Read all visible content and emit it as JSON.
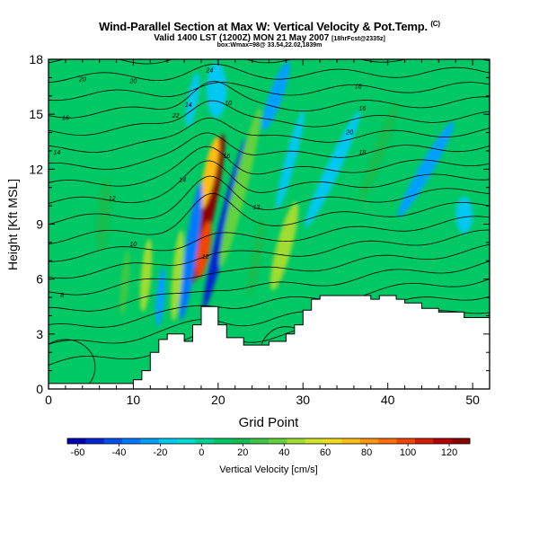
{
  "header": {
    "title_main": "Wind-Parallel Section at Max W: Vertical Velocity & Pot.Temp.",
    "title_mark": "(C)",
    "subtitle_main": "Valid 1400 LST (1200Z) MON 21 May 2007",
    "subtitle_small": "[18hrFcst@2335z]",
    "subtitle2": "box:Wmax=98@ 33.54,22.02,1839m"
  },
  "chart_data": {
    "type": "heatmap",
    "xlabel": "Grid Point",
    "ylabel": "Height [Kft MSL]",
    "xlim": [
      0,
      52
    ],
    "ylim": [
      0,
      18
    ],
    "xticks": [
      0,
      10,
      20,
      30,
      40,
      50
    ],
    "yticks": [
      0,
      3,
      6,
      9,
      12,
      15,
      18
    ],
    "colorbar": {
      "label": "Vertical Velocity [cm/s]",
      "ticks": [
        -60,
        -40,
        -20,
        0,
        20,
        40,
        60,
        80,
        100,
        120
      ],
      "range": [
        -65,
        130
      ],
      "colors": [
        "#0000b4",
        "#0028d2",
        "#0050f0",
        "#0078ff",
        "#00a0ff",
        "#00c8f0",
        "#00dcd2",
        "#00d296",
        "#00c864",
        "#14be50",
        "#3cc846",
        "#64d23c",
        "#a0dc32",
        "#d2e628",
        "#f0dc1e",
        "#ffbe14",
        "#ff960f",
        "#ff6e0a",
        "#f04605",
        "#d21e00",
        "#b40000",
        "#8c0000"
      ]
    },
    "terrain": [
      [
        0,
        0.3
      ],
      [
        10,
        0.3
      ],
      [
        10,
        0.5
      ],
      [
        11,
        0.5
      ],
      [
        11,
        1
      ],
      [
        12,
        1
      ],
      [
        12,
        2
      ],
      [
        13,
        2
      ],
      [
        13,
        2.7
      ],
      [
        14,
        2.7
      ],
      [
        14,
        3
      ],
      [
        16,
        3
      ],
      [
        16,
        2.6
      ],
      [
        17,
        2.6
      ],
      [
        17,
        3.5
      ],
      [
        18,
        3.5
      ],
      [
        18,
        4.5
      ],
      [
        20,
        4.5
      ],
      [
        20,
        3.5
      ],
      [
        21,
        3.5
      ],
      [
        21,
        2.8
      ],
      [
        23,
        2.8
      ],
      [
        23,
        2.4
      ],
      [
        26,
        2.4
      ],
      [
        26,
        2.6
      ],
      [
        28,
        2.6
      ],
      [
        28,
        3
      ],
      [
        29,
        3
      ],
      [
        29,
        3.5
      ],
      [
        30,
        3.5
      ],
      [
        30,
        4.3
      ],
      [
        31,
        4.3
      ],
      [
        31,
        4.9
      ],
      [
        32,
        4.9
      ],
      [
        32,
        5.1
      ],
      [
        38,
        5.1
      ],
      [
        38,
        4.9
      ],
      [
        39,
        4.9
      ],
      [
        39,
        5.1
      ],
      [
        41,
        5.1
      ],
      [
        41,
        4.9
      ],
      [
        42,
        4.9
      ],
      [
        42,
        4.7
      ],
      [
        44,
        4.7
      ],
      [
        44,
        4.4
      ],
      [
        46,
        4.4
      ],
      [
        46,
        4.2
      ],
      [
        49,
        4.2
      ],
      [
        49,
        3.9
      ],
      [
        52,
        3.9
      ],
      [
        52,
        0
      ]
    ],
    "theta_label_values": [
      "20",
      "20",
      "24",
      "18",
      "16",
      "22",
      "16",
      "20",
      "14",
      "10",
      "18",
      "14",
      "16",
      "12",
      "13",
      "14",
      "10",
      "12",
      "8"
    ],
    "w_blobs": [
      {
        "x": 18.7,
        "y": 9.8,
        "rx": 0.9,
        "ry": 4.2,
        "w": 125,
        "tilt": 12
      },
      {
        "x": 18.3,
        "y": 7.6,
        "rx": 0.7,
        "ry": 1.6,
        "w": 95,
        "tilt": 10
      },
      {
        "x": 19.0,
        "y": 11.8,
        "rx": 0.7,
        "ry": 2.0,
        "w": 70,
        "tilt": 12
      },
      {
        "x": 20.8,
        "y": 9.0,
        "rx": 0.7,
        "ry": 4.8,
        "w": -55,
        "tilt": 14
      },
      {
        "x": 16.8,
        "y": 7.5,
        "rx": 0.7,
        "ry": 3.8,
        "w": -30,
        "tilt": 8
      },
      {
        "x": 15.2,
        "y": 6.2,
        "rx": 0.6,
        "ry": 2.5,
        "w": 50,
        "tilt": 5
      },
      {
        "x": 22.6,
        "y": 11.0,
        "rx": 0.8,
        "ry": 4.5,
        "w": 40,
        "tilt": 14
      },
      {
        "x": 24.5,
        "y": 7.2,
        "rx": 0.6,
        "ry": 2.2,
        "w": 15,
        "tilt": 10
      },
      {
        "x": 11.5,
        "y": 6.2,
        "rx": 0.6,
        "ry": 2.0,
        "w": 45,
        "tilt": 5
      },
      {
        "x": 9.0,
        "y": 5.8,
        "rx": 0.5,
        "ry": 1.8,
        "w": 30,
        "tilt": 5
      },
      {
        "x": 13.2,
        "y": 5.0,
        "rx": 0.5,
        "ry": 1.6,
        "w": -22,
        "tilt": 5
      },
      {
        "x": 27.8,
        "y": 7.8,
        "rx": 0.9,
        "ry": 2.5,
        "w": 45,
        "tilt": 15
      },
      {
        "x": 28.5,
        "y": 12.5,
        "rx": 0.6,
        "ry": 2.8,
        "w": -15,
        "tilt": 15
      },
      {
        "x": 33.5,
        "y": 12.0,
        "rx": 0.8,
        "ry": 3.5,
        "w": -18,
        "tilt": 25
      },
      {
        "x": 26.8,
        "y": 16.0,
        "rx": 0.8,
        "ry": 2.0,
        "w": -22,
        "tilt": 20
      },
      {
        "x": 19.8,
        "y": 16.3,
        "rx": 1.2,
        "ry": 1.5,
        "w": -12,
        "tilt": 0
      },
      {
        "x": 44.5,
        "y": 12.0,
        "rx": 0.8,
        "ry": 3.0,
        "w": -22,
        "tilt": 30
      },
      {
        "x": 49.0,
        "y": 9.5,
        "rx": 1.0,
        "ry": 1.0,
        "w": -12,
        "tilt": 0
      },
      {
        "x": 39.0,
        "y": 13.0,
        "rx": 0.7,
        "ry": 3.0,
        "w": 18,
        "tilt": 20
      },
      {
        "x": 17.0,
        "y": 15.8,
        "rx": 0.6,
        "ry": 1.5,
        "w": -15,
        "tilt": 10
      },
      {
        "x": 6.5,
        "y": 9.5,
        "rx": 0.8,
        "ry": 2.0,
        "w": 16,
        "tilt": 5
      },
      {
        "x": 35.5,
        "y": 7.0,
        "rx": 1.5,
        "ry": 1.2,
        "w": 12,
        "tilt": 0
      }
    ]
  }
}
